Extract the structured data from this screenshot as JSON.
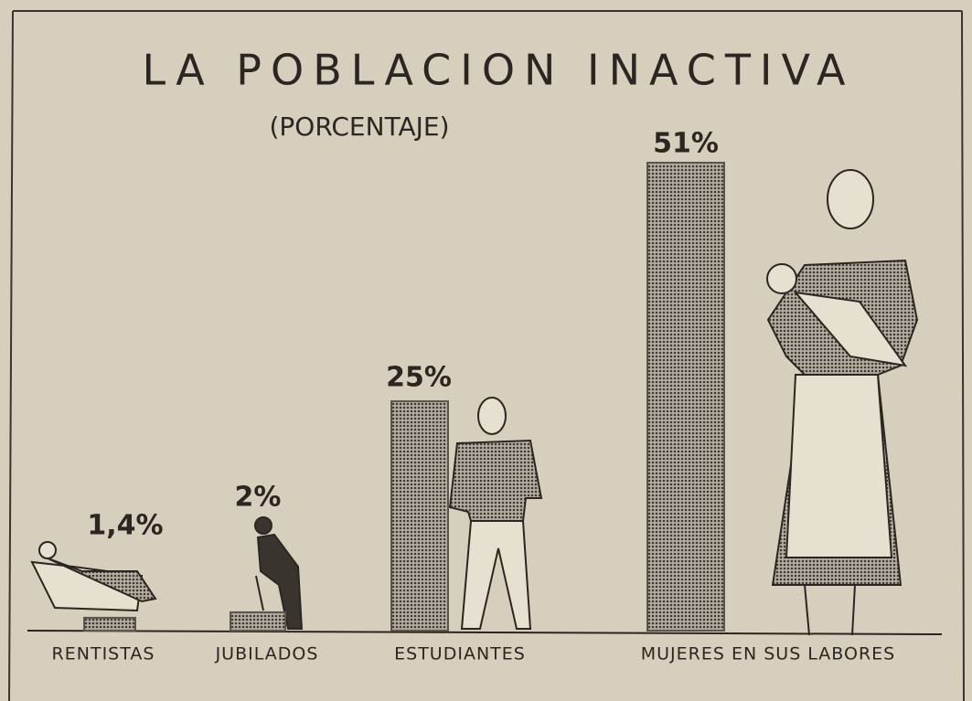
{
  "chart_data": {
    "type": "bar",
    "title": "LA POBLACION INACTIVA",
    "subtitle": "(PORCENTAJE)",
    "categories": [
      "RENTISTAS",
      "JUBILADOS",
      "ESTUDIANTES",
      "MUJERES EN SUS LABORES"
    ],
    "values": [
      1.4,
      2,
      25,
      51
    ],
    "value_labels": [
      "1,4%",
      "2%",
      "25%",
      "51%"
    ],
    "color": "#5b5650"
  }
}
